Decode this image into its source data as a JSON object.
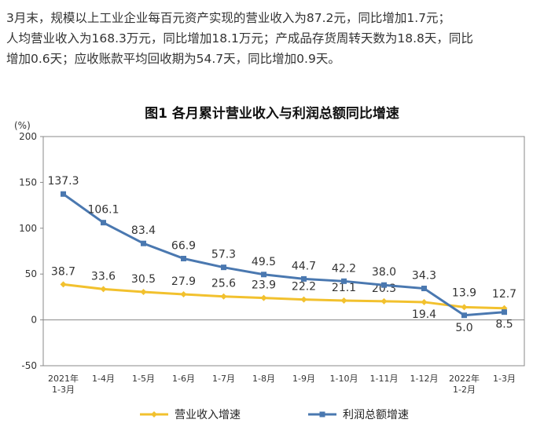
{
  "paragraph": {
    "line1": "3月末，规模以上工业企业每百元资产实现的营业收入为87.2元，同比增加1.7元；",
    "line2": "人均营业收入为168.3万元，同比增加18.1万元；产成品存货周转天数为18.8天，同比",
    "line3": "增加0.6天；应收账款平均回收期为54.7天，同比增加0.9天。"
  },
  "chart_data": {
    "type": "line",
    "title": "图1  各月累计营业收入与利润总额同比增速",
    "ylabel": "(%)",
    "ylim": [
      -50,
      200
    ],
    "yticks": [
      "200",
      "150",
      "100",
      "50",
      "0",
      "-50"
    ],
    "categories": [
      [
        "2021年",
        "1-3月"
      ],
      [
        "1-4月"
      ],
      [
        "1-5月"
      ],
      [
        "1-6月"
      ],
      [
        "1-7月"
      ],
      [
        "1-8月"
      ],
      [
        "1-9月"
      ],
      [
        "1-10月"
      ],
      [
        "1-11月"
      ],
      [
        "1-12月"
      ],
      [
        "2022年",
        "1-2月"
      ],
      [
        "1-3月"
      ]
    ],
    "series": [
      {
        "name": "营业收入增速",
        "color": "#f2c12e",
        "values": [
          38.7,
          33.6,
          30.5,
          27.9,
          25.6,
          23.9,
          22.2,
          21.1,
          20.3,
          19.4,
          13.9,
          12.7
        ],
        "labels": [
          "38.7",
          "33.6",
          "30.5",
          "27.9",
          "25.6",
          "23.9",
          "22.2",
          "21.1",
          "20.3",
          "19.4",
          "13.9",
          "12.7"
        ]
      },
      {
        "name": "利润总额增速",
        "color": "#4a78b0",
        "values": [
          137.3,
          106.1,
          83.4,
          66.9,
          57.3,
          49.5,
          44.7,
          42.2,
          38.0,
          34.3,
          5.0,
          8.5
        ],
        "labels": [
          "137.3",
          "106.1",
          "83.4",
          "66.9",
          "57.3",
          "49.5",
          "44.7",
          "42.2",
          "38.0",
          "34.3",
          "5.0",
          "8.5"
        ]
      }
    ],
    "legend_position": "bottom"
  }
}
